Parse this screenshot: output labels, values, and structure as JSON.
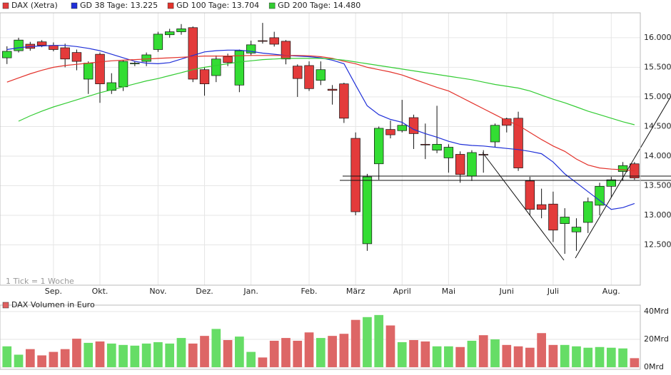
{
  "chart_data": [
    {
      "type": "candlestick",
      "legend": "DAX (Xetra)",
      "annotation": "1 Tick = 1 Woche",
      "up_color": "#33dd33",
      "down_color": "#e33b3b",
      "open": [
        15660,
        15780,
        15890,
        15930,
        15870,
        15830,
        15750,
        15300,
        15720,
        15110,
        15170,
        15560,
        15600,
        15800,
        16050,
        16100,
        16170,
        15460,
        15360,
        15680,
        15200,
        15740,
        15950,
        16000,
        15940,
        15520,
        15530,
        15280,
        15130,
        15220,
        14300,
        12520,
        13870,
        14450,
        14430,
        14650,
        14200,
        14100,
        13970,
        14030,
        13660,
        14030,
        14240,
        14630,
        14640,
        13580,
        13180,
        13190,
        12860,
        12720,
        12880,
        13170,
        13490,
        13740,
        13870
      ],
      "high": [
        15855,
        16000,
        15930,
        15960,
        15920,
        15900,
        15800,
        15600,
        15750,
        15400,
        15620,
        15600,
        15750,
        16100,
        16150,
        16230,
        16190,
        15500,
        15700,
        15730,
        15800,
        15950,
        16250,
        16100,
        15960,
        15550,
        15600,
        15600,
        15200,
        15240,
        14400,
        13700,
        14500,
        14600,
        14950,
        14700,
        14550,
        14850,
        14200,
        14080,
        14100,
        14100,
        14550,
        14650,
        14750,
        13650,
        13450,
        13400,
        13120,
        12950,
        13300,
        13550,
        13650,
        13900,
        13900
      ],
      "low": [
        15555,
        15750,
        15780,
        15840,
        15770,
        15500,
        15450,
        15050,
        14900,
        15050,
        15100,
        15520,
        15520,
        15760,
        16000,
        16050,
        15250,
        15020,
        15250,
        15520,
        15080,
        15700,
        15900,
        15850,
        15550,
        15000,
        15100,
        15200,
        14870,
        14560,
        13000,
        12400,
        13600,
        14300,
        14400,
        14120,
        13950,
        14050,
        13720,
        13550,
        13580,
        13720,
        14150,
        14400,
        13750,
        13000,
        12950,
        12550,
        12350,
        12400,
        12700,
        13000,
        13300,
        13580,
        13600
      ],
      "close": [
        15770,
        15960,
        15820,
        15870,
        15800,
        15640,
        15600,
        15570,
        15220,
        15240,
        15600,
        15570,
        15710,
        16060,
        16100,
        16150,
        15300,
        15220,
        15640,
        15580,
        15780,
        15880,
        15950,
        15890,
        15640,
        15310,
        15140,
        15460,
        15110,
        14640,
        13060,
        13650,
        14470,
        14360,
        14520,
        14380,
        14200,
        14200,
        14150,
        13690,
        14060,
        14020,
        14520,
        14520,
        13800,
        13100,
        13100,
        12750,
        12970,
        12800,
        13230,
        13490,
        13600,
        13840,
        13630
      ],
      "series": [
        {
          "name": "GD 38 Tage: 13.225",
          "color": "#1f2fd8",
          "values": [
            15800,
            15830,
            15850,
            15860,
            15870,
            15870,
            15850,
            15820,
            15780,
            15720,
            15660,
            15600,
            15570,
            15560,
            15580,
            15640,
            15700,
            15760,
            15780,
            15790,
            15790,
            15770,
            15740,
            15720,
            15700,
            15690,
            15680,
            15660,
            15620,
            15560,
            15200,
            14850,
            14700,
            14620,
            14570,
            14450,
            14380,
            14320,
            14250,
            14200,
            14180,
            14170,
            14150,
            14130,
            14110,
            14080,
            14040,
            13900,
            13700,
            13550,
            13400,
            13250,
            13100,
            13130,
            13200
          ]
        },
        {
          "name": "GD 100 Tage: 13.704",
          "color": "#e3322b",
          "values": [
            15250,
            15320,
            15390,
            15450,
            15500,
            15530,
            15550,
            15570,
            15590,
            15610,
            15620,
            15630,
            15640,
            15650,
            15660,
            15670,
            15680,
            15690,
            15690,
            15690,
            15695,
            15700,
            15700,
            15700,
            15700,
            15700,
            15695,
            15680,
            15650,
            15600,
            15560,
            15500,
            15460,
            15420,
            15370,
            15300,
            15230,
            15160,
            15100,
            15000,
            14900,
            14800,
            14700,
            14600,
            14520,
            14400,
            14280,
            14170,
            14080,
            13950,
            13850,
            13800,
            13780,
            13770,
            13750
          ]
        },
        {
          "name": "GD 200 Tage: 14.480",
          "color": "#33cc33",
          "values": [
            null,
            14590,
            14680,
            14760,
            14830,
            14890,
            14950,
            15010,
            15070,
            15120,
            15170,
            15220,
            15270,
            15310,
            15360,
            15410,
            15460,
            15500,
            15530,
            15560,
            15590,
            15610,
            15630,
            15640,
            15650,
            15650,
            15650,
            15650,
            15640,
            15620,
            15590,
            15560,
            15530,
            15500,
            15470,
            15440,
            15410,
            15380,
            15350,
            15320,
            15290,
            15250,
            15210,
            15180,
            15150,
            15100,
            15030,
            14960,
            14900,
            14830,
            14760,
            14700,
            14640,
            14580,
            14530
          ]
        }
      ],
      "xlim": [
        -0.6,
        54.5
      ],
      "xticks": [
        {
          "value": 4,
          "label": "Sep."
        },
        {
          "value": 8,
          "label": "Okt."
        },
        {
          "value": 13,
          "label": "Nov."
        },
        {
          "value": 17,
          "label": "Dez."
        },
        {
          "value": 21,
          "label": "Jan."
        },
        {
          "value": 26,
          "label": "Feb."
        },
        {
          "value": 30,
          "label": "März"
        },
        {
          "value": 34,
          "label": "April"
        },
        {
          "value": 38,
          "label": "Mai"
        },
        {
          "value": 43,
          "label": "Juni"
        },
        {
          "value": 47,
          "label": "Juli"
        },
        {
          "value": 52,
          "label": "Aug."
        }
      ],
      "ylim": [
        11820,
        16420
      ],
      "yticks": [
        {
          "value": 12500,
          "label": "12.500"
        },
        {
          "value": 13000,
          "label": "13.000"
        },
        {
          "value": 13500,
          "label": "13.500"
        },
        {
          "value": 14000,
          "label": "14.000"
        },
        {
          "value": 14500,
          "label": "14.500"
        },
        {
          "value": 15000,
          "label": "15.000"
        },
        {
          "value": 15500,
          "label": "15.500"
        },
        {
          "value": 16000,
          "label": "16.000"
        }
      ],
      "grid": true
    },
    {
      "type": "volume",
      "legend": "DAX Volumen in Euro",
      "values": [
        15,
        9,
        13,
        8.5,
        11,
        13,
        20.5,
        17.5,
        18.5,
        17,
        16,
        15.5,
        17,
        18,
        17,
        21,
        17,
        22.5,
        27.5,
        19.5,
        22,
        11,
        7,
        19,
        21,
        19,
        25,
        21,
        22.5,
        24,
        34,
        36,
        37.5,
        30,
        18,
        19.5,
        18.5,
        15,
        15,
        14.5,
        19,
        23,
        20,
        16,
        15,
        14,
        24.5,
        16,
        16,
        15,
        14,
        14.5,
        14,
        13.5,
        6.5
      ],
      "xlim": [
        -0.6,
        54.5
      ],
      "ylim": [
        -1.5,
        44.6
      ],
      "yticks": [
        {
          "value": 0,
          "label": "0Mrd"
        },
        {
          "value": 20,
          "label": "20Mrd"
        },
        {
          "value": 40,
          "label": "40Mrd"
        }
      ],
      "grid": true
    }
  ]
}
